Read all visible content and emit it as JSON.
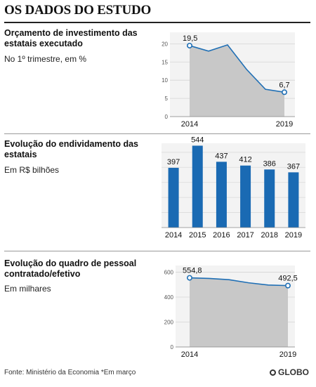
{
  "page_title": "OS DADOS DO ESTUDO",
  "footer": "Fonte: Ministério da Economia *Em março",
  "logo": "GLOBO",
  "chart_data": [
    {
      "type": "area",
      "title": "Orçamento de investimento das estatais executado",
      "subtitle": "No 1º trimestre, em %",
      "x": [
        2014,
        2015,
        2016,
        2017,
        2018,
        2019
      ],
      "values": [
        19.5,
        18.0,
        19.7,
        13.0,
        7.5,
        6.7
      ],
      "x_tick_labels": [
        "2014",
        "2019"
      ],
      "y_ticks": [
        "0",
        "5",
        "10",
        "15",
        "20"
      ],
      "ylim": [
        0,
        22
      ],
      "data_labels": [
        {
          "index": 0,
          "text": "19,5"
        },
        {
          "index": 5,
          "text": "6,7"
        }
      ],
      "grid": true,
      "fill_color": "#c8c8c8",
      "line_color": "#1f6fb5"
    },
    {
      "type": "bar",
      "title": "Evolução do endividamento das estatais",
      "subtitle": "Em R$ bilhões",
      "categories": [
        "2014",
        "2015",
        "2016",
        "2017",
        "2018",
        "2019"
      ],
      "values": [
        397,
        544,
        437,
        412,
        386,
        367
      ],
      "data_labels": [
        "397",
        "544",
        "437",
        "412",
        "386",
        "367"
      ],
      "ylim": [
        0,
        560
      ],
      "grid": true,
      "bar_color": "#1a6ab3"
    },
    {
      "type": "area",
      "title": "Evolução do quadro de pessoal contratado/efetivo",
      "subtitle": "Em milhares",
      "x": [
        2014,
        2015,
        2016,
        2017,
        2018,
        2019
      ],
      "values": [
        554.8,
        550,
        540,
        515,
        497,
        492.5
      ],
      "x_tick_labels": [
        "2014",
        "2019"
      ],
      "y_ticks": [
        "0",
        "200",
        "400",
        "600"
      ],
      "ylim": [
        0,
        620
      ],
      "data_labels": [
        {
          "index": 0,
          "text": "554,8"
        },
        {
          "index": 5,
          "text": "492,5"
        }
      ],
      "grid": true,
      "fill_color": "#c8c8c8",
      "line_color": "#1f6fb5"
    }
  ]
}
